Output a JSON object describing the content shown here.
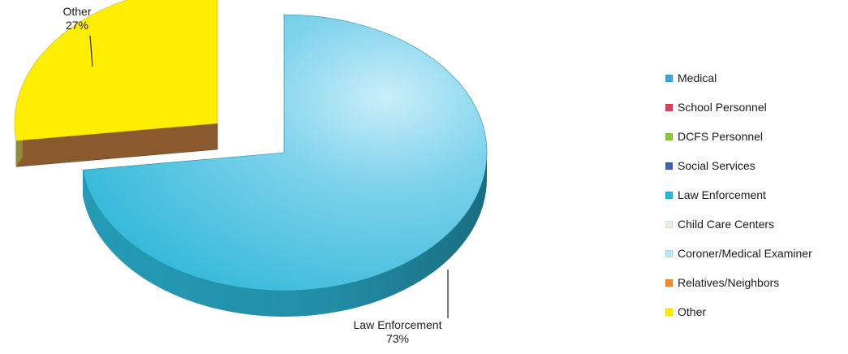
{
  "chart_data": {
    "type": "pie",
    "title": "",
    "categories": [
      "Medical",
      "School Personnel",
      "DCFS Personnel",
      "Social Services",
      "Law Enforcement",
      "Child Care Centers",
      "Coroner/Medical Examiner",
      "Relatives/Neighbors",
      "Other"
    ],
    "values": [
      0,
      0,
      0,
      0,
      73,
      0,
      0,
      0,
      27
    ],
    "unit": "%",
    "colors": [
      "#3fa6d8",
      "#e1405a",
      "#8dc63f",
      "#3f5fb0",
      "#2bb6d6",
      "#e2f2e0",
      "#b9e4f2",
      "#f08a3a",
      "#ffee00"
    ],
    "slice_labels": [
      {
        "category": "Law Enforcement",
        "text": "Law Enforcement",
        "value_text": "73%"
      },
      {
        "category": "Other",
        "text": "Other",
        "value_text": "27%"
      }
    ],
    "legend": {
      "placement": "right"
    },
    "three_d": true,
    "exploded": [
      "Other"
    ]
  }
}
